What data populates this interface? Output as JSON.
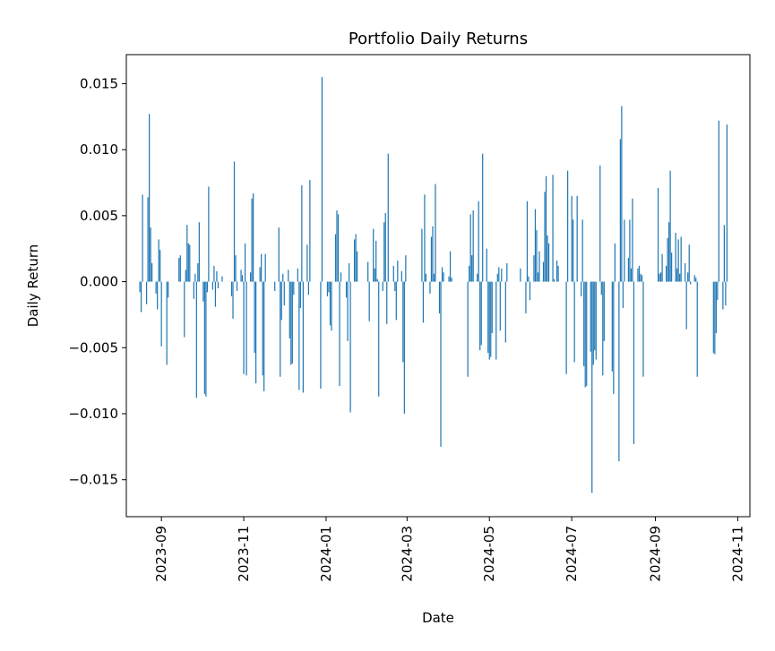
{
  "chart_data": {
    "type": "bar",
    "title": "Portfolio Daily Returns",
    "xlabel": "Date",
    "ylabel": "Daily Return",
    "ylim": [
      -0.0178,
      0.0172
    ],
    "xlim": [
      "2023-08-06",
      "2024-11-10"
    ],
    "y_ticks": [
      "0.015",
      "0.010",
      "0.005",
      "0.000",
      "−0.005",
      "−0.010",
      "−0.015"
    ],
    "y_tick_values": [
      0.015,
      0.01,
      0.005,
      0.0,
      -0.005,
      -0.01,
      -0.015
    ],
    "x_ticks": [
      "2023-09",
      "2023-11",
      "2024-01",
      "2024-03",
      "2024-05",
      "2024-07",
      "2024-09",
      "2024-11"
    ],
    "x_tick_dates": [
      "2023-09-01",
      "2023-11-01",
      "2024-01-01",
      "2024-03-01",
      "2024-05-01",
      "2024-07-01",
      "2024-09-01",
      "2024-11-01"
    ],
    "grid": false,
    "legend": "none",
    "series": [
      {
        "color": "#1f77b4",
        "x": [
          "2023-08-16",
          "2023-08-17",
          "2023-08-18",
          "2023-08-21",
          "2023-08-22",
          "2023-08-23",
          "2023-08-24",
          "2023-08-25",
          "2023-08-28",
          "2023-08-29",
          "2023-08-30",
          "2023-08-31",
          "2023-09-01",
          "2023-09-05",
          "2023-09-06",
          "2023-09-14",
          "2023-09-15",
          "2023-09-18",
          "2023-09-19",
          "2023-09-20",
          "2023-09-21",
          "2023-09-22",
          "2023-09-25",
          "2023-09-26",
          "2023-09-27",
          "2023-09-28",
          "2023-09-29",
          "2023-10-02",
          "2023-10-03",
          "2023-10-04",
          "2023-10-05",
          "2023-10-06",
          "2023-10-09",
          "2023-10-10",
          "2023-10-11",
          "2023-10-12",
          "2023-10-13",
          "2023-10-16",
          "2023-10-23",
          "2023-10-24",
          "2023-10-25",
          "2023-10-26",
          "2023-10-27",
          "2023-10-30",
          "2023-10-31",
          "2023-11-01",
          "2023-11-02",
          "2023-11-03",
          "2023-11-06",
          "2023-11-07",
          "2023-11-08",
          "2023-11-09",
          "2023-11-10",
          "2023-11-13",
          "2023-11-14",
          "2023-11-15",
          "2023-11-16",
          "2023-11-17",
          "2023-11-24",
          "2023-11-27",
          "2023-11-28",
          "2023-11-29",
          "2023-11-30",
          "2023-12-01",
          "2023-12-04",
          "2023-12-05",
          "2023-12-06",
          "2023-12-07",
          "2023-12-08",
          "2023-12-11",
          "2023-12-12",
          "2023-12-13",
          "2023-12-14",
          "2023-12-15",
          "2023-12-18",
          "2023-12-19",
          "2023-12-20",
          "2023-12-28",
          "2023-12-29",
          "2024-01-02",
          "2024-01-03",
          "2024-01-04",
          "2024-01-05",
          "2024-01-08",
          "2024-01-09",
          "2024-01-10",
          "2024-01-11",
          "2024-01-12",
          "2024-01-16",
          "2024-01-17",
          "2024-01-18",
          "2024-01-19",
          "2024-01-22",
          "2024-01-23",
          "2024-01-24",
          "2024-02-01",
          "2024-02-02",
          "2024-02-05",
          "2024-02-06",
          "2024-02-07",
          "2024-02-08",
          "2024-02-09",
          "2024-02-12",
          "2024-02-13",
          "2024-02-14",
          "2024-02-15",
          "2024-02-16",
          "2024-02-20",
          "2024-02-21",
          "2024-02-22",
          "2024-02-23",
          "2024-02-26",
          "2024-02-27",
          "2024-02-28",
          "2024-02-29",
          "2024-03-12",
          "2024-03-13",
          "2024-03-14",
          "2024-03-15",
          "2024-03-18",
          "2024-03-19",
          "2024-03-20",
          "2024-03-21",
          "2024-03-22",
          "2024-03-25",
          "2024-03-26",
          "2024-03-27",
          "2024-03-28",
          "2024-04-01",
          "2024-04-02",
          "2024-04-03",
          "2024-04-15",
          "2024-04-16",
          "2024-04-17",
          "2024-04-18",
          "2024-04-19",
          "2024-04-22",
          "2024-04-23",
          "2024-04-24",
          "2024-04-25",
          "2024-04-26",
          "2024-04-29",
          "2024-04-30",
          "2024-05-01",
          "2024-05-02",
          "2024-05-03",
          "2024-05-06",
          "2024-05-07",
          "2024-05-08",
          "2024-05-09",
          "2024-05-10",
          "2024-05-13",
          "2024-05-14",
          "2024-05-24",
          "2024-05-28",
          "2024-05-29",
          "2024-05-30",
          "2024-05-31",
          "2024-06-03",
          "2024-06-04",
          "2024-06-05",
          "2024-06-06",
          "2024-06-07",
          "2024-06-10",
          "2024-06-11",
          "2024-06-12",
          "2024-06-13",
          "2024-06-14",
          "2024-06-17",
          "2024-06-18",
          "2024-06-20",
          "2024-06-21",
          "2024-06-27",
          "2024-06-28",
          "2024-07-01",
          "2024-07-02",
          "2024-07-03",
          "2024-07-05",
          "2024-07-08",
          "2024-07-09",
          "2024-07-10",
          "2024-07-11",
          "2024-07-12",
          "2024-07-15",
          "2024-07-16",
          "2024-07-17",
          "2024-07-18",
          "2024-07-19",
          "2024-07-22",
          "2024-07-23",
          "2024-07-24",
          "2024-07-25",
          "2024-07-31",
          "2024-08-01",
          "2024-08-02",
          "2024-08-05",
          "2024-08-06",
          "2024-08-07",
          "2024-08-08",
          "2024-08-09",
          "2024-08-12",
          "2024-08-13",
          "2024-08-14",
          "2024-08-15",
          "2024-08-16",
          "2024-08-19",
          "2024-08-20",
          "2024-08-21",
          "2024-08-22",
          "2024-08-23",
          "2024-09-03",
          "2024-09-04",
          "2024-09-05",
          "2024-09-06",
          "2024-09-09",
          "2024-09-10",
          "2024-09-11",
          "2024-09-12",
          "2024-09-13",
          "2024-09-16",
          "2024-09-17",
          "2024-09-18",
          "2024-09-19",
          "2024-09-20",
          "2024-09-23",
          "2024-09-24",
          "2024-09-25",
          "2024-09-26",
          "2024-09-27",
          "2024-09-30",
          "2024-10-01",
          "2024-10-02",
          "2024-10-14",
          "2024-10-15",
          "2024-10-16",
          "2024-10-17",
          "2024-10-18",
          "2024-10-21",
          "2024-10-22",
          "2024-10-23",
          "2024-10-24"
        ],
        "values": [
          -0.0008,
          -0.0023,
          0.0066,
          -0.0017,
          0.0064,
          0.0127,
          0.0041,
          0.0014,
          -0.0009,
          -0.0021,
          0.0032,
          0.0024,
          -0.0049,
          -0.0063,
          -0.0012,
          0.0018,
          0.002,
          -0.0042,
          0.0009,
          0.0043,
          0.0029,
          0.0028,
          -0.0013,
          0.0006,
          -0.0088,
          0.0014,
          0.0045,
          -0.0015,
          -0.0085,
          -0.0087,
          -0.0008,
          0.0072,
          -0.0006,
          0.0012,
          -0.0019,
          0.0008,
          -0.0005,
          0.0004,
          -0.0011,
          -0.0028,
          0.0091,
          0.002,
          -0.0007,
          0.0009,
          0.0005,
          -0.007,
          0.0029,
          -0.0071,
          0.0007,
          0.0063,
          0.0067,
          -0.0054,
          -0.0077,
          0.0011,
          0.0021,
          -0.0071,
          -0.0083,
          0.0021,
          -0.0007,
          0.0041,
          -0.0072,
          -0.0029,
          0.0006,
          -0.0018,
          0.0009,
          -0.0043,
          -0.0063,
          -0.0062,
          -0.001,
          0.001,
          -0.0082,
          -0.002,
          0.0073,
          -0.0084,
          0.0028,
          -0.001,
          0.0077,
          -0.0081,
          0.0155,
          -0.0011,
          -0.0008,
          -0.0033,
          -0.0037,
          0.0036,
          0.0054,
          0.0051,
          -0.0079,
          0.0007,
          -0.0012,
          -0.0045,
          0.0014,
          -0.0099,
          0.0032,
          0.0036,
          0.0023,
          0.0015,
          -0.003,
          0.004,
          0.001,
          0.0031,
          0.0002,
          -0.0087,
          -0.0007,
          0.0045,
          0.0052,
          -0.0032,
          0.0097,
          0.0012,
          -0.0007,
          -0.0029,
          0.0016,
          0.0008,
          -0.0061,
          -0.01,
          0.002,
          0.004,
          -0.0031,
          0.0066,
          0.0006,
          -0.0009,
          0.0034,
          0.0042,
          0.0006,
          0.0074,
          -0.0024,
          -0.0125,
          0.0011,
          0.0007,
          0.0004,
          0.0023,
          0.0003,
          -0.0072,
          0.0012,
          0.0051,
          0.002,
          0.0054,
          0.0006,
          0.0061,
          -0.0052,
          -0.0048,
          0.0097,
          0.0025,
          -0.0054,
          -0.0059,
          -0.0057,
          -0.0039,
          -0.0059,
          0.0006,
          0.0011,
          -0.0037,
          0.001,
          -0.0046,
          0.0014,
          0.001,
          -0.0024,
          0.0061,
          0.0004,
          -0.0014,
          0.002,
          0.0055,
          0.0039,
          0.0007,
          0.0023,
          0.0015,
          0.0068,
          0.008,
          0.0035,
          0.0029,
          0.0081,
          0.0002,
          0.0016,
          0.0012,
          -0.007,
          0.0084,
          0.0065,
          0.0047,
          -0.0061,
          0.0065,
          -0.0011,
          0.0047,
          -0.0064,
          -0.008,
          -0.0079,
          -0.0053,
          -0.016,
          -0.0063,
          -0.0052,
          -0.0059,
          0.0088,
          -0.001,
          -0.0071,
          -0.0045,
          -0.0068,
          -0.0085,
          0.0029,
          -0.0136,
          0.0108,
          0.0133,
          -0.002,
          0.0047,
          0.0018,
          0.0047,
          0.001,
          0.0063,
          -0.0123,
          0.001,
          0.0012,
          0.0006,
          0.0005,
          -0.0072,
          0.0071,
          0.0006,
          0.0007,
          0.0021,
          0.0012,
          0.0033,
          0.0045,
          0.0084,
          0.0022,
          0.0037,
          0.001,
          0.0032,
          0.0006,
          0.0034,
          0.0014,
          -0.0036,
          0.0007,
          0.0028,
          -0.0002,
          0.0005,
          0.0003,
          -0.0072,
          -0.0054,
          -0.0055,
          -0.0039,
          -0.0014,
          0.0122,
          -0.0021,
          0.0043,
          -0.0018,
          0.0119
        ]
      }
    ]
  }
}
